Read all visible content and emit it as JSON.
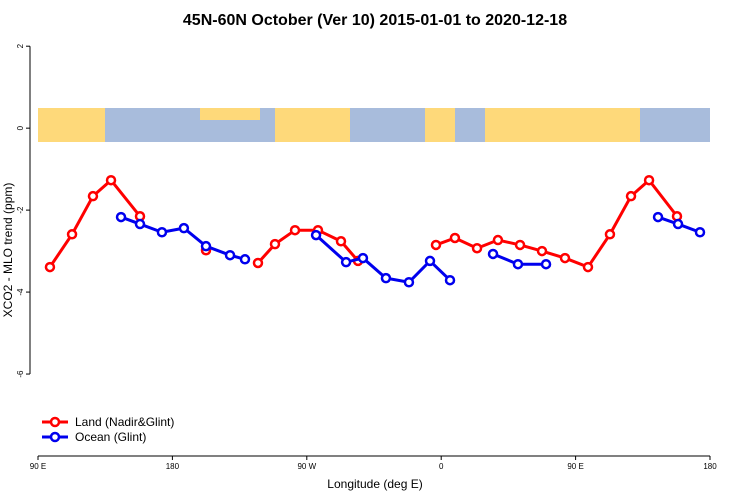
{
  "chart_data": {
    "type": "line",
    "title": "45N-60N October (Ver 10)   2015-01-01 to 2020-12-18",
    "x_label": "Longitude (deg E)",
    "y_label": "XCO2 - MLO trend (ppm)",
    "xlim": [
      90,
      540
    ],
    "xticks": [
      {
        "value": 90,
        "label": "90 E"
      },
      {
        "value": 180,
        "label": "180"
      },
      {
        "value": 270,
        "label": "90 W"
      },
      {
        "value": 360,
        "label": "0"
      },
      {
        "value": 450,
        "label": "90 E"
      },
      {
        "value": 540,
        "label": "180"
      }
    ],
    "ylim": [
      -8,
      2.2
    ],
    "yticks": [
      2,
      0,
      -2,
      -4,
      -6
    ],
    "legend": "bottom-left",
    "series": [
      {
        "name": "Land (Nadir&Glint)",
        "color": "#ff0000",
        "x": [
          98,
          112.8,
          126.8,
          138.9,
          158.3,
          null,
          202.5,
          null,
          237.3,
          248.7,
          262.1,
          277.5,
          292.9,
          304.3,
          null,
          356.5,
          369.2,
          384,
          398,
          412.8,
          427.5,
          442.9,
          458.3,
          473,
          487.1,
          499.2,
          517.9
        ],
        "values": [
          -3.39,
          -2.59,
          -1.66,
          -1.27,
          -2.15,
          null,
          -2.98,
          null,
          -3.29,
          -2.83,
          -2.49,
          -2.49,
          -2.76,
          -3.24,
          null,
          -2.85,
          -2.68,
          -2.93,
          -2.73,
          -2.85,
          -3.0,
          -3.17,
          -3.39,
          -2.59,
          -1.66,
          -1.27,
          -2.15
        ]
      },
      {
        "name": "Ocean (Glint)",
        "color": "#0000ee",
        "x": [
          145.6,
          158.3,
          173,
          187.7,
          202.5,
          218.6,
          228.6,
          null,
          276.2,
          296.3,
          307.6,
          323,
          338.4,
          352.5,
          365.9,
          null,
          394.7,
          411.4,
          430.2,
          null,
          505.2,
          518.6,
          533.3
        ],
        "values": [
          -2.17,
          -2.34,
          -2.54,
          -2.44,
          -2.88,
          -3.1,
          -3.2,
          null,
          -2.61,
          -3.27,
          -3.17,
          -3.66,
          -3.76,
          -3.24,
          -3.71,
          null,
          -3.07,
          -3.32,
          -3.32,
          null,
          -2.17,
          -2.34,
          -2.54
        ]
      }
    ]
  }
}
